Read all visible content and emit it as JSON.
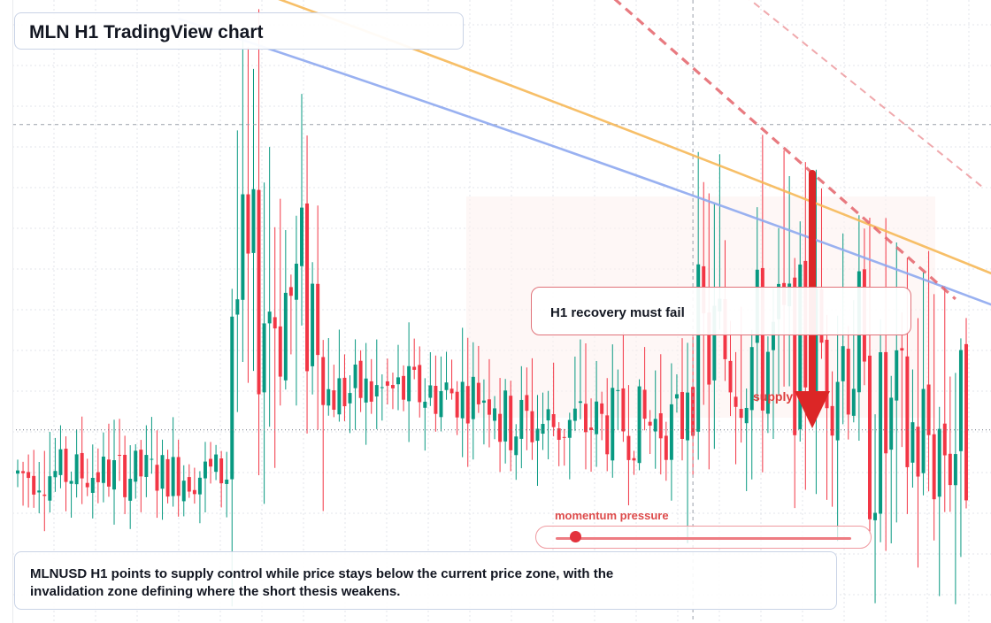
{
  "title": "MLN H1 TradingView chart",
  "signal_box": {
    "text": "H1 recovery must fail"
  },
  "supply_label": "supply",
  "momentum": {
    "label": "momentum pressure",
    "level": 0.06
  },
  "caption": "MLNUSD H1 points to supply control while price stays below the current price zone, with the invalidation zone defining where the short thesis weakens.",
  "colors": {
    "up": "#089981",
    "down": "#f23645",
    "ma_fast": "#f6b858",
    "ma_slow": "#8ea8f0",
    "trendline": "#e4636a",
    "arrow": "#dc2626",
    "grid": "#e3e6eb"
  },
  "chart_data": {
    "type": "candlestick",
    "symbol": "MLNUSD",
    "timeframe": "H1",
    "ylim": [
      0,
      100
    ],
    "seed": 7,
    "regimes": [
      {
        "from": 0,
        "to": 40,
        "base": 24,
        "volatility": 4
      },
      {
        "from": 40,
        "to": 58,
        "base": 52,
        "volatility": 18
      },
      {
        "from": 58,
        "to": 90,
        "base": 37,
        "volatility": 5
      },
      {
        "from": 90,
        "to": 125,
        "base": 32,
        "volatility": 6
      },
      {
        "from": 125,
        "to": 158,
        "base": 44,
        "volatility": 14
      },
      {
        "from": 158,
        "to": 178,
        "base": 30,
        "volatility": 16
      }
    ],
    "candle_count": 178,
    "moving_averages": [
      {
        "name": "fast",
        "from": [
          30,
          106
        ],
        "to": [
          182,
          56
        ]
      },
      {
        "name": "slow",
        "from": [
          30,
          97
        ],
        "to": [
          182,
          51
        ]
      }
    ],
    "trendlines": [
      {
        "style": "dashed",
        "from": [
          105,
          105
        ],
        "to": [
          175,
          52
        ]
      },
      {
        "style": "dashed-faint",
        "from": [
          105,
          122
        ],
        "to": [
          180,
          70
        ]
      }
    ],
    "crosshair": {
      "x_index": 126,
      "y": 80
    },
    "current_price": 31
  }
}
